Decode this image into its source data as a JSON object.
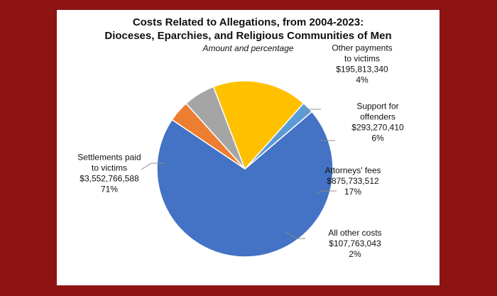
{
  "chart_data": {
    "type": "pie",
    "title": [
      "Costs Related to Allegations, from 2004-2023:",
      "Dioceses, Eparchies, and Religious Communities of Men"
    ],
    "subtitle": "Amount and percentage",
    "slices": [
      {
        "label": [
          "Other payments",
          "to victims"
        ],
        "value": 195813340,
        "value_text": "$195,813,340",
        "percent": "4%",
        "color": "#ed7d31"
      },
      {
        "label": [
          "Support for",
          "offenders"
        ],
        "value": 293270410,
        "value_text": "$293,270,410",
        "percent": "6%",
        "color": "#a5a5a5"
      },
      {
        "label": [
          "Attorneys' fees"
        ],
        "value": 875733512,
        "value_text": "$875,733,512",
        "percent": "17%",
        "color": "#ffc000"
      },
      {
        "label": [
          "All other costs"
        ],
        "value": 107763043,
        "value_text": "$107,763,043",
        "percent": "2%",
        "color": "#5b9bd5"
      },
      {
        "label": [
          "Settlements paid",
          "to victims"
        ],
        "value": 3552766588,
        "value_text": "$3,552,766,588",
        "percent": "71%",
        "color": "#4472c4"
      }
    ]
  }
}
